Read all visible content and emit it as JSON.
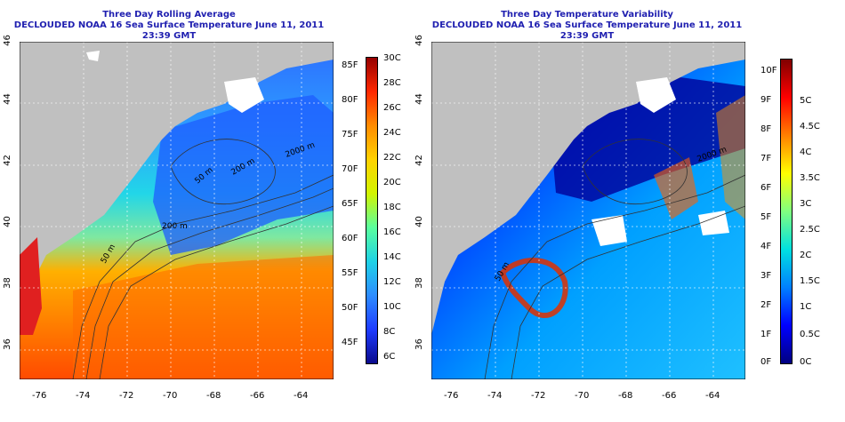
{
  "left_panel": {
    "title": "Three Day Rolling Average",
    "subtitle": "DECLOUDED NOAA 16 Sea Surface Temperature June 11, 2011 23:39 GMT",
    "colorbar_left_labels": [
      "85F",
      "80F",
      "75F",
      "70F",
      "65F",
      "60F",
      "55F",
      "50F",
      "45F"
    ],
    "colorbar_right_labels": [
      "30C",
      "28C",
      "26C",
      "24C",
      "22C",
      "20C",
      "18C",
      "16C",
      "14C",
      "12C",
      "10C",
      "8C",
      "6C"
    ],
    "contour_labels": [
      "50 m",
      "200 m",
      "2000 m",
      "200 m",
      "50 m"
    ]
  },
  "right_panel": {
    "title": "Three Day Temperature Variability",
    "subtitle": "DECLOUDED NOAA 16 Sea Surface Temperature June 11, 2011 23:39 GMT",
    "colorbar_left_labels": [
      "10F",
      "9F",
      "8F",
      "7F",
      "6F",
      "5F",
      "4F",
      "3F",
      "2F",
      "1F",
      "0F"
    ],
    "colorbar_right_labels": [
      "5C",
      "4.5C",
      "4C",
      "3.5C",
      "3C",
      "2.5C",
      "2C",
      "1.5C",
      "1C",
      "0.5C",
      "0C"
    ],
    "contour_labels": [
      "50 m",
      "2000 m"
    ]
  },
  "axes": {
    "x_ticks": [
      "-76",
      "-74",
      "-72",
      "-70",
      "-68",
      "-66",
      "-64"
    ],
    "y_ticks": [
      "36",
      "38",
      "40",
      "42",
      "44",
      "46"
    ]
  },
  "colors": {
    "title": "#1f1fb0",
    "land": "#c0c0c0",
    "sst_scale": [
      "#0a0a8c",
      "#1e3cff",
      "#2d8cff",
      "#1ed2e6",
      "#5aff9e",
      "#d2f500",
      "#ffd200",
      "#ff8c00",
      "#ff2800",
      "#960000"
    ],
    "var_scale": [
      "#000080",
      "#0000ff",
      "#0080ff",
      "#00e0e0",
      "#80ff80",
      "#ffff00",
      "#ff8000",
      "#ff0000",
      "#800000"
    ]
  }
}
